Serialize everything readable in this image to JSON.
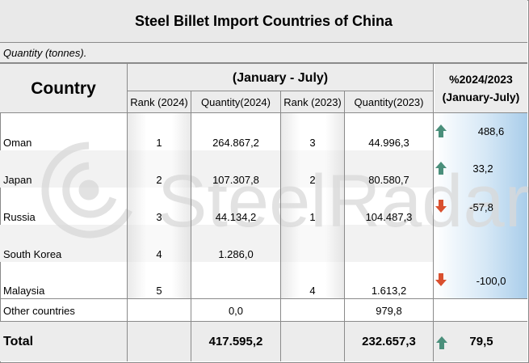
{
  "title": "Steel Billet Import Countries of China",
  "unit_note": "Quantity (tonnes).",
  "header": {
    "country": "Country",
    "period": "(January - July)",
    "rank_2024": "Rank (2024)",
    "qty_2024": "Quantity(2024)",
    "rank_2023": "Rank (2023)",
    "qty_2023": "Quantity(2023)",
    "pct_line1": "%2024/2023",
    "pct_line2": "(January-July)"
  },
  "rows": [
    {
      "country": "Oman",
      "rank_2024": "1",
      "qty_2024": "264.867,2",
      "rank_2023": "3",
      "qty_2023": "44.996,3",
      "pct": "488,6",
      "trend": "up"
    },
    {
      "country": "Japan",
      "rank_2024": "2",
      "qty_2024": "107.307,8",
      "rank_2023": "2",
      "qty_2023": "80.580,7",
      "pct": "33,2",
      "trend": "up"
    },
    {
      "country": "Russia",
      "rank_2024": "3",
      "qty_2024": "44.134,2",
      "rank_2023": "1",
      "qty_2023": "104.487,3",
      "pct": "-57,8",
      "trend": "down"
    },
    {
      "country": "South Korea",
      "rank_2024": "4",
      "qty_2024": "1.286,0",
      "rank_2023": "",
      "qty_2023": "",
      "pct": "",
      "trend": ""
    },
    {
      "country": "Malaysia",
      "rank_2024": "5",
      "qty_2024": "",
      "rank_2023": "4",
      "qty_2023": "1.613,2",
      "pct": "-100,0",
      "trend": "down"
    }
  ],
  "other": {
    "country": "Other countries",
    "qty_2024": "0,0",
    "qty_2023": "979,8"
  },
  "total": {
    "label": "Total",
    "qty_2024": "417.595,2",
    "qty_2023": "232.657,3",
    "pct": "79,5",
    "trend": "up"
  },
  "watermark": "SteelRadar",
  "colors": {
    "up": "#4a8f7b",
    "down": "#d9502f",
    "header_bg": "#ececec"
  }
}
